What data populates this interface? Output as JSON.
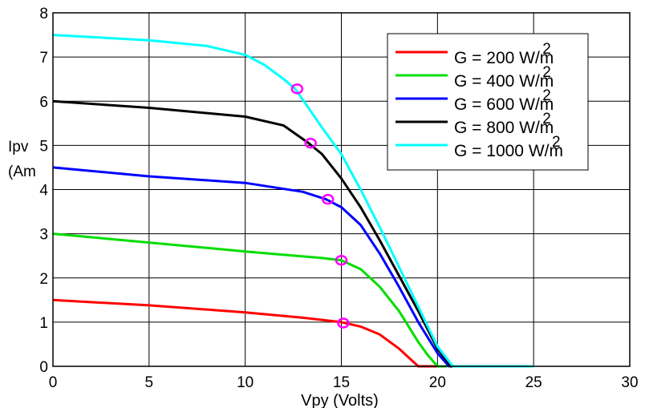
{
  "chart_data": {
    "type": "line",
    "title": "",
    "xlabel": "Vpy (Volts)",
    "ylabel": "Ipv (Am",
    "xlim": [
      0,
      30
    ],
    "ylim": [
      0,
      8
    ],
    "xticks": [
      "0",
      "5",
      "10",
      "15",
      "20",
      "25",
      "30"
    ],
    "yticks": [
      "0",
      "1",
      "2",
      "3",
      "4",
      "5",
      "6",
      "7",
      "8"
    ],
    "grid": true,
    "legend_position": "top-right",
    "series": [
      {
        "name": "G = 200 W/m2",
        "color": "#ff0000",
        "x": [
          0,
          5,
          10,
          13,
          15,
          16,
          17,
          18,
          18.5,
          19,
          20
        ],
        "y": [
          1.5,
          1.38,
          1.22,
          1.1,
          1.0,
          0.9,
          0.72,
          0.4,
          0.2,
          0.0,
          0.0
        ]
      },
      {
        "name": "G = 400 W/m2",
        "color": "#00dd00",
        "x": [
          0,
          5,
          10,
          14,
          15,
          16,
          17,
          18,
          19,
          19.5,
          20,
          20.5
        ],
        "y": [
          3.0,
          2.8,
          2.6,
          2.45,
          2.4,
          2.2,
          1.8,
          1.25,
          0.55,
          0.25,
          0.0,
          0.0
        ]
      },
      {
        "name": "G = 600 W/m2",
        "color": "#0000ff",
        "x": [
          0,
          5,
          10,
          13,
          14.2,
          15,
          16,
          17,
          18,
          19,
          20,
          20.6,
          21
        ],
        "y": [
          4.5,
          4.3,
          4.15,
          3.95,
          3.78,
          3.6,
          3.2,
          2.55,
          1.8,
          1.0,
          0.3,
          0.0,
          0.0
        ]
      },
      {
        "name": "G = 800 W/m2",
        "color": "#000000",
        "x": [
          0,
          5,
          10,
          12,
          13.3,
          14,
          15,
          16,
          17,
          18,
          19,
          20,
          20.7,
          21
        ],
        "y": [
          6.0,
          5.85,
          5.65,
          5.45,
          5.05,
          4.8,
          4.25,
          3.6,
          2.85,
          2.05,
          1.25,
          0.4,
          0.0,
          0.0
        ]
      },
      {
        "name": "G = 1000 W/m2",
        "color": "#00ffff",
        "x": [
          0,
          5,
          8,
          10,
          11,
          12,
          12.6,
          14,
          15,
          16,
          17,
          18,
          19,
          20,
          20.8,
          25
        ],
        "y": [
          7.5,
          7.38,
          7.25,
          7.05,
          6.82,
          6.5,
          6.28,
          5.4,
          4.8,
          4.0,
          3.15,
          2.25,
          1.35,
          0.45,
          0.0,
          0.0
        ]
      }
    ],
    "mpp_points": {
      "color": "#ff00ff",
      "x": [
        15.1,
        15.0,
        14.3,
        13.4,
        12.7
      ],
      "y": [
        0.98,
        2.4,
        3.78,
        5.05,
        6.28
      ]
    }
  }
}
